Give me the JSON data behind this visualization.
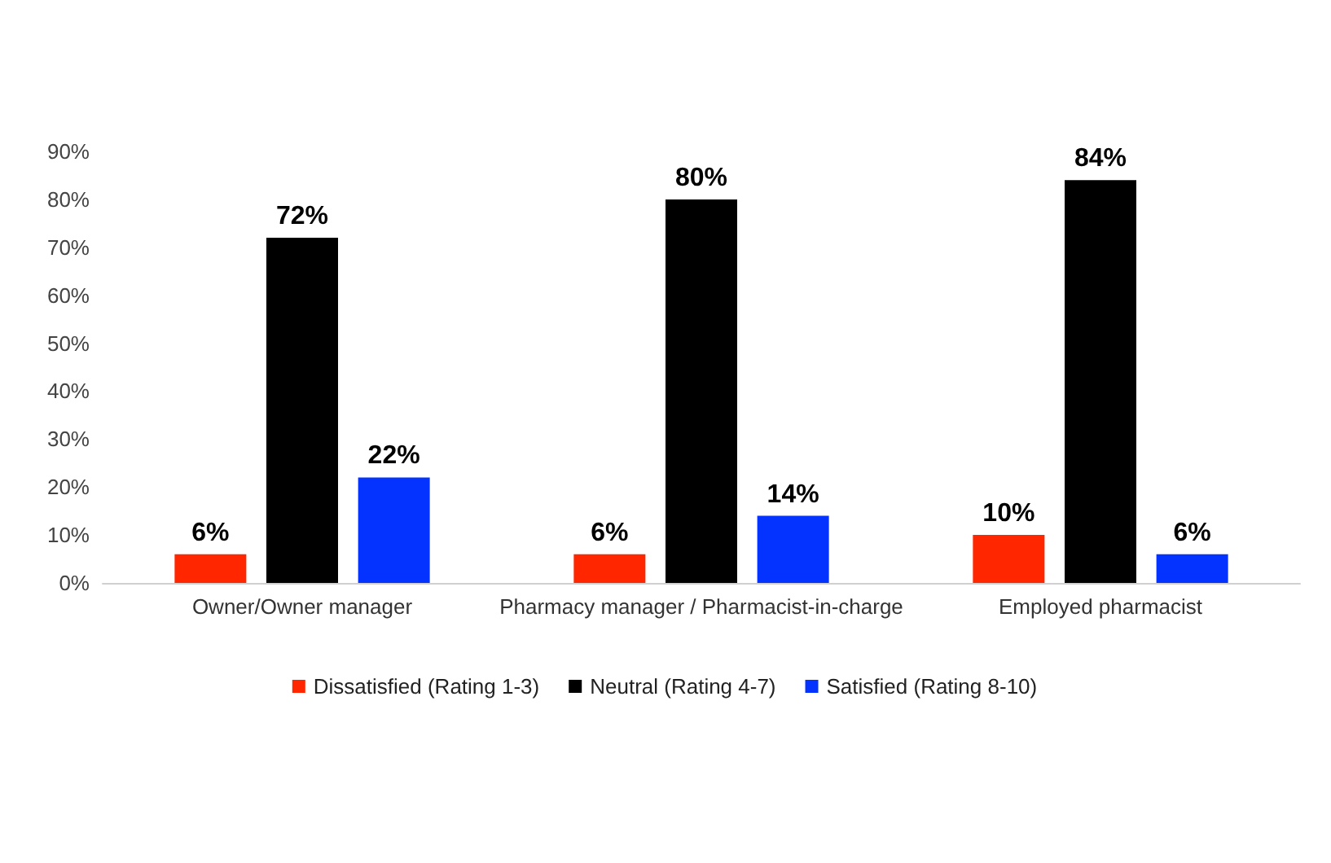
{
  "chart_data": {
    "type": "bar",
    "categories": [
      "Owner/Owner manager",
      "Pharmacy manager / Pharmacist-in-charge",
      "Employed pharmacist"
    ],
    "series": [
      {
        "name": "Dissatisfied (Rating 1-3)",
        "color": "#ff2600",
        "values": [
          6,
          6,
          10
        ],
        "value_labels": [
          "6%",
          "6%",
          "10%"
        ]
      },
      {
        "name": "Neutral (Rating 4-7)",
        "color": "#000000",
        "values": [
          72,
          80,
          84
        ],
        "value_labels": [
          "72%",
          "80%",
          "84%"
        ]
      },
      {
        "name": "Satisfied (Rating 8-10)",
        "color": "#0433ff",
        "values": [
          22,
          14,
          6
        ],
        "value_labels": [
          "22%",
          "14%",
          "6%"
        ]
      }
    ],
    "ylim": [
      0,
      90
    ],
    "yticks": [
      {
        "value": 0,
        "label": "0%"
      },
      {
        "value": 10,
        "label": "10%"
      },
      {
        "value": 20,
        "label": "20%"
      },
      {
        "value": 30,
        "label": "30%"
      },
      {
        "value": 40,
        "label": "40%"
      },
      {
        "value": 50,
        "label": "50%"
      },
      {
        "value": 60,
        "label": "60%"
      },
      {
        "value": 70,
        "label": "70%"
      },
      {
        "value": 80,
        "label": "80%"
      },
      {
        "value": 90,
        "label": "90%"
      }
    ],
    "grid": false,
    "legend": "bottom"
  }
}
